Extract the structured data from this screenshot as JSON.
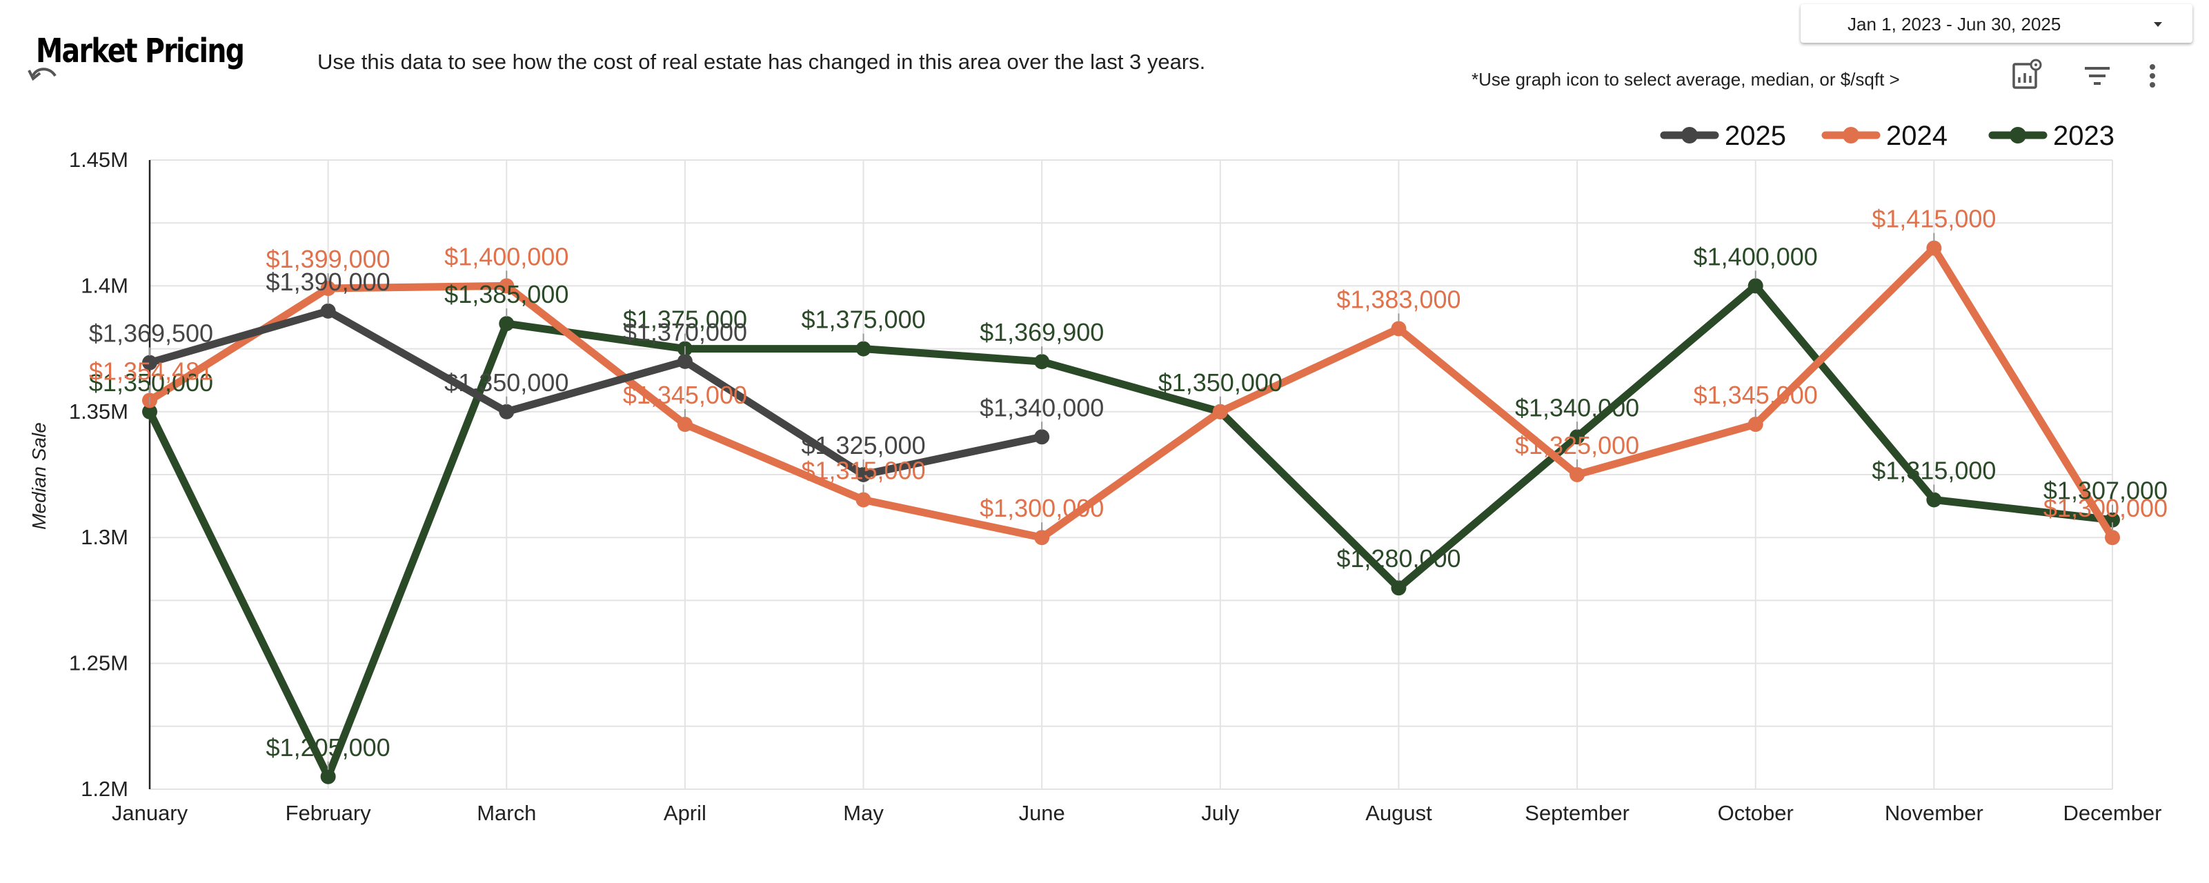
{
  "header": {
    "title": "Market Pricing",
    "subtitle": "Use this data to see how the cost of real estate has changed in this area over the last 3 years.",
    "hint": "*Use graph icon to  select average, median, or $/sqft >",
    "date_range": "Jan 1, 2023 - Jun 30, 2025",
    "icons": [
      "undo-icon",
      "chart-settings-icon",
      "filter-icon",
      "more-vert-icon"
    ]
  },
  "chart_data": {
    "type": "line",
    "categories": [
      "January",
      "February",
      "March",
      "April",
      "May",
      "June",
      "July",
      "August",
      "September",
      "October",
      "November",
      "December"
    ],
    "ylabel": "Median Sale",
    "ylim": [
      1200000,
      1450000
    ],
    "yticks": [
      1200000,
      1250000,
      1300000,
      1350000,
      1400000,
      1450000
    ],
    "ytick_labels": [
      "1.2M",
      "1.25M",
      "1.3M",
      "1.35M",
      "1.4M",
      "1.45M"
    ],
    "legend_position": "top-right",
    "grid": true,
    "series": [
      {
        "name": "2025",
        "color": "#454545",
        "values": [
          1369500,
          1390000,
          1350000,
          1370000,
          1325000,
          1340000,
          null,
          null,
          null,
          null,
          null,
          null
        ],
        "labels": [
          "$1,369,500",
          "$1,390,000",
          "$1,350,000",
          "$1,370,000",
          "$1,325,000",
          "$1,340,000",
          "",
          "",
          "",
          "",
          "",
          ""
        ]
      },
      {
        "name": "2024",
        "color": "#E0714A",
        "values": [
          1354481,
          1399000,
          1400000,
          1345000,
          1315000,
          1300000,
          1350000,
          1383000,
          1325000,
          1345000,
          1415000,
          1300000
        ],
        "labels": [
          "$1,354,481",
          "$1,399,000",
          "$1,400,000",
          "$1,345,000",
          "$1,315,000",
          "$1,300,000",
          "",
          "$1,383,000",
          "$1,325,000",
          "$1,345,000",
          "$1,415,000",
          "$1,300,000"
        ]
      },
      {
        "name": "2023",
        "color": "#2A4A27",
        "values": [
          1350000,
          1205000,
          1385000,
          1375000,
          1375000,
          1369900,
          1350000,
          1280000,
          1340000,
          1400000,
          1315000,
          1307000
        ],
        "labels": [
          "$1,350,000",
          "$1,205,000",
          "$1,385,000",
          "$1,375,000",
          "$1,375,000",
          "$1,369,900",
          "$1,350,000",
          "$1,280,000",
          "$1,340,000",
          "$1,400,000",
          "$1,315,000",
          "$1,307,000"
        ]
      }
    ]
  }
}
